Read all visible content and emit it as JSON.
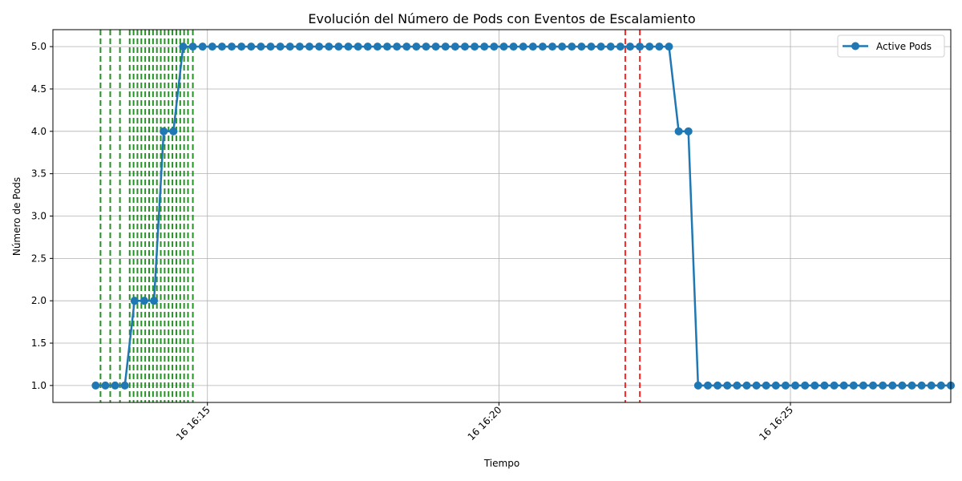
{
  "chart_data": {
    "type": "line",
    "title": "Evolución del Número de Pods con Eventos de Escalamiento",
    "xlabel": "Tiempo",
    "ylabel": "Número de Pods",
    "ylim": [
      0.8,
      5.2
    ],
    "yticks": [
      1.0,
      1.5,
      2.0,
      2.5,
      3.0,
      3.5,
      4.0,
      4.5,
      5.0
    ],
    "ytick_labels": [
      "1.0",
      "1.5",
      "2.0",
      "2.5",
      "3.0",
      "3.5",
      "4.0",
      "4.5",
      "5.0"
    ],
    "xlim_minutes": [
      "16 16:12:21",
      "16 16:27:45"
    ],
    "xticks": [
      "16 16:15",
      "16 16:20",
      "16 16:25"
    ],
    "grid": true,
    "legend_position": "top-right",
    "series": [
      {
        "name": "Active Pods",
        "color": "#1f77b4",
        "marker": "circle",
        "x": [
          "16 16:13:05",
          "16 16:13:15",
          "16 16:13:25",
          "16 16:13:35",
          "16 16:13:45",
          "16 16:13:55",
          "16 16:14:05",
          "16 16:14:15",
          "16 16:14:25",
          "16 16:14:35",
          "16 16:14:45",
          "16 16:14:55",
          "16 16:15:05",
          "16 16:15:15",
          "16 16:15:25",
          "16 16:15:35",
          "16 16:15:45",
          "16 16:15:55",
          "16 16:16:05",
          "16 16:16:15",
          "16 16:16:25",
          "16 16:16:35",
          "16 16:16:45",
          "16 16:16:55",
          "16 16:17:05",
          "16 16:17:15",
          "16 16:17:25",
          "16 16:17:35",
          "16 16:17:45",
          "16 16:17:55",
          "16 16:18:05",
          "16 16:18:15",
          "16 16:18:25",
          "16 16:18:35",
          "16 16:18:45",
          "16 16:18:55",
          "16 16:19:05",
          "16 16:19:15",
          "16 16:19:25",
          "16 16:19:35",
          "16 16:19:45",
          "16 16:19:55",
          "16 16:20:05",
          "16 16:20:15",
          "16 16:20:25",
          "16 16:20:35",
          "16 16:20:45",
          "16 16:20:55",
          "16 16:21:05",
          "16 16:21:15",
          "16 16:21:25",
          "16 16:21:35",
          "16 16:21:45",
          "16 16:21:55",
          "16 16:22:05",
          "16 16:22:15",
          "16 16:22:25",
          "16 16:22:35",
          "16 16:22:45",
          "16 16:22:55",
          "16 16:23:05",
          "16 16:23:15",
          "16 16:23:25",
          "16 16:23:35",
          "16 16:23:45",
          "16 16:23:55",
          "16 16:24:05",
          "16 16:24:15",
          "16 16:24:25",
          "16 16:24:35",
          "16 16:24:45",
          "16 16:24:55",
          "16 16:25:05",
          "16 16:25:15",
          "16 16:25:25",
          "16 16:25:35",
          "16 16:25:45",
          "16 16:25:55",
          "16 16:26:05",
          "16 16:26:15",
          "16 16:26:25",
          "16 16:26:35",
          "16 16:26:45",
          "16 16:26:55",
          "16 16:27:05",
          "16 16:27:15",
          "16 16:27:25",
          "16 16:27:35",
          "16 16:27:45"
        ],
        "y": [
          1,
          1,
          1,
          1,
          2,
          2,
          2,
          4,
          4,
          5,
          5,
          5,
          5,
          5,
          5,
          5,
          5,
          5,
          5,
          5,
          5,
          5,
          5,
          5,
          5,
          5,
          5,
          5,
          5,
          5,
          5,
          5,
          5,
          5,
          5,
          5,
          5,
          5,
          5,
          5,
          5,
          5,
          5,
          5,
          5,
          5,
          5,
          5,
          5,
          5,
          5,
          5,
          5,
          5,
          5,
          5,
          5,
          5,
          5,
          5,
          4,
          4,
          1,
          1,
          1,
          1,
          1,
          1,
          1,
          1,
          1,
          1,
          1,
          1,
          1,
          1,
          1,
          1,
          1,
          1,
          1,
          1,
          1,
          1,
          1,
          1,
          1,
          1,
          1
        ]
      }
    ],
    "events": [
      {
        "kind": "scale-up",
        "color": "#008000",
        "times": [
          "16 16:13:10",
          "16 16:13:20",
          "16 16:13:30",
          "16 16:13:40",
          "16 16:13:44",
          "16 16:13:48",
          "16 16:13:52",
          "16 16:13:56",
          "16 16:14:00",
          "16 16:14:04",
          "16 16:14:08",
          "16 16:14:12",
          "16 16:14:16",
          "16 16:14:20",
          "16 16:14:24",
          "16 16:14:28",
          "16 16:14:32",
          "16 16:14:36",
          "16 16:14:40",
          "16 16:14:45"
        ]
      },
      {
        "kind": "scale-down",
        "color": "#ff0000",
        "times": [
          "16 16:22:10",
          "16 16:22:25"
        ]
      }
    ]
  }
}
